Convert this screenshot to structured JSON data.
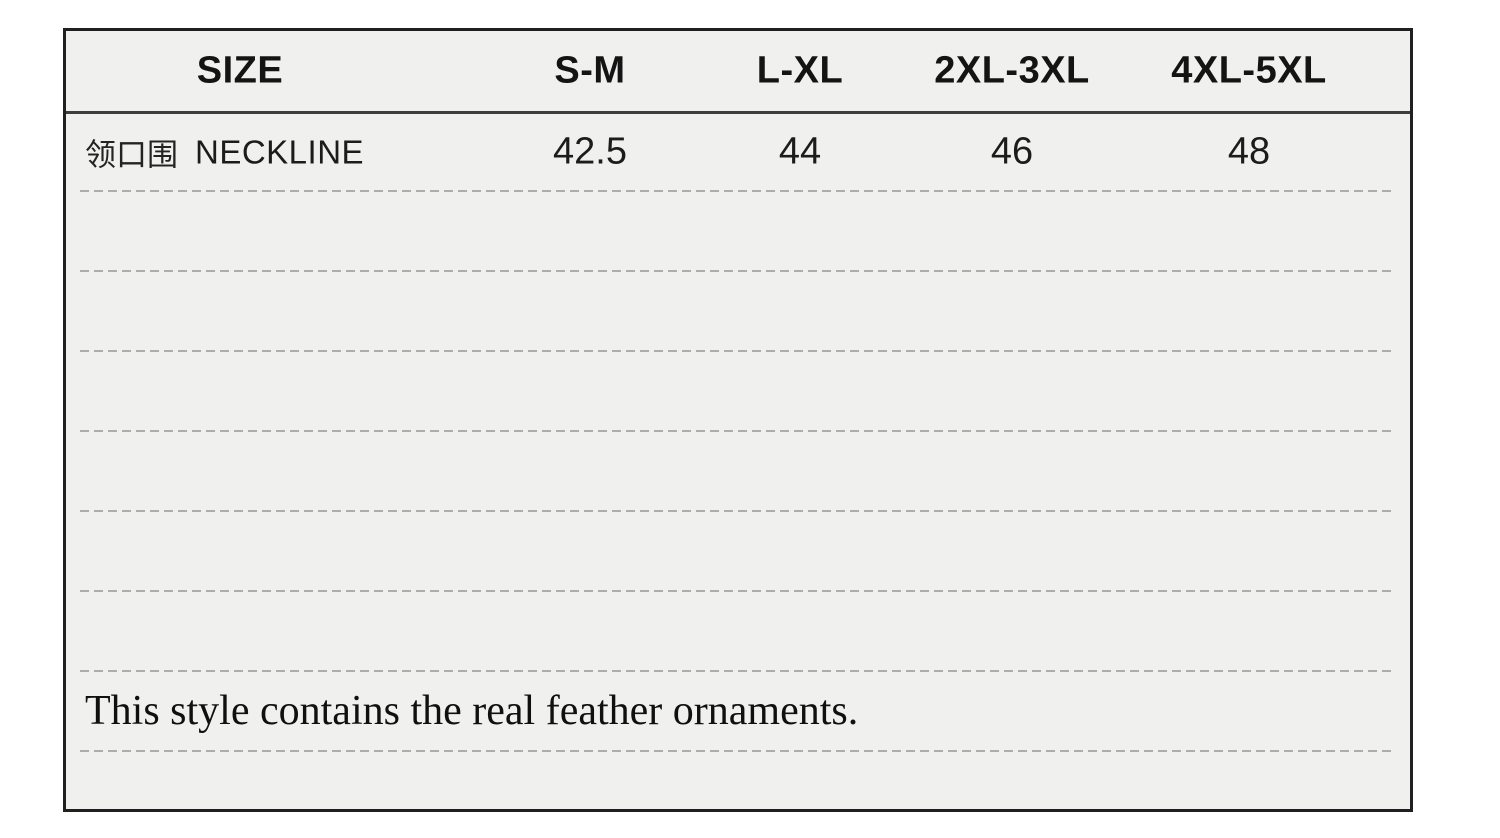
{
  "colors": {
    "page_background": "#ffffff",
    "table_background": "#f0f0ef",
    "table_border": "#202020",
    "header_divider": "#3e3e3e",
    "dashed_line": "#adadad",
    "text": "#1a1a1a"
  },
  "table": {
    "header": [
      "SIZE",
      "S-M",
      "L-XL",
      "2XL-3XL",
      "4XL-5XL"
    ],
    "row": {
      "label_zh": "领口围",
      "label_en": "NECKLINE",
      "values": [
        "42.5",
        "44",
        "46",
        "48"
      ]
    },
    "empty_row_count": 6,
    "note": "This style contains the real feather ornaments."
  }
}
